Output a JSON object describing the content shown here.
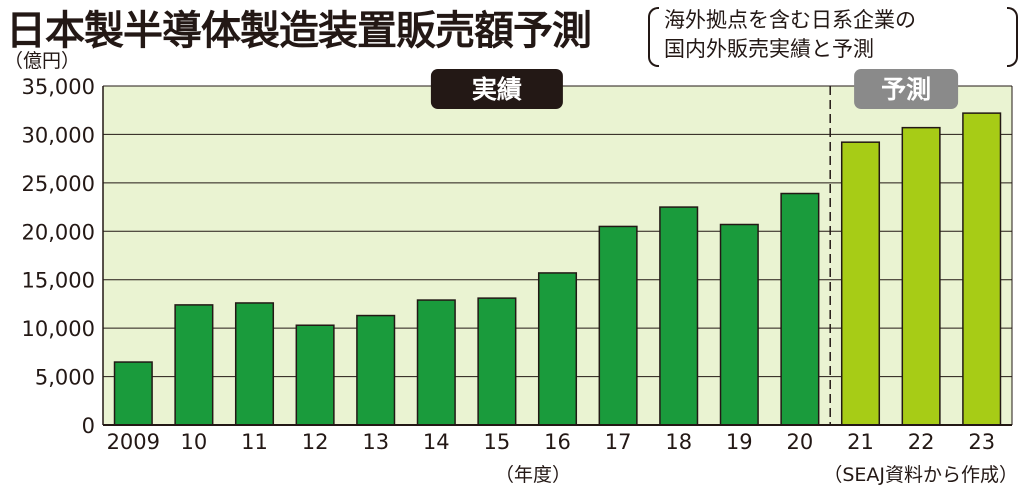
{
  "title": "日本製半導体製造装置販売額予測",
  "note": {
    "line1": "海外拠点を含む日系企業の",
    "line2": "国内外販売実績と予測"
  },
  "colors": {
    "plot_bg": "#eaf3d2",
    "actual_bar": "#1a9b3c",
    "forecast_bar": "#a7cc16",
    "actual_badge": "#231815",
    "forecast_badge": "#8a8a8a",
    "grid": "#231815"
  },
  "chart_data": {
    "type": "bar",
    "title": "日本製半導体製造装置販売額予測",
    "ylabel": "（億円）",
    "xlabel": "（年度）",
    "source": "（SEAJ資料から作成）",
    "categories": [
      "2009",
      "10",
      "11",
      "12",
      "13",
      "14",
      "15",
      "16",
      "17",
      "18",
      "19",
      "20",
      "21",
      "22",
      "23"
    ],
    "values": [
      6500,
      12400,
      12600,
      10300,
      11300,
      12900,
      13100,
      15700,
      20500,
      22500,
      20700,
      23900,
      29200,
      30700,
      32200
    ],
    "forecast_start_index": 12,
    "ylim": [
      0,
      35000
    ],
    "yticks": [
      0,
      5000,
      10000,
      15000,
      20000,
      25000,
      30000,
      35000
    ],
    "ytick_labels": [
      "0",
      "5,000",
      "10,000",
      "15,000",
      "20,000",
      "25,000",
      "30,000",
      "35,000"
    ],
    "grid": true,
    "annotations": {
      "actual": "実績",
      "forecast": "予測"
    }
  }
}
